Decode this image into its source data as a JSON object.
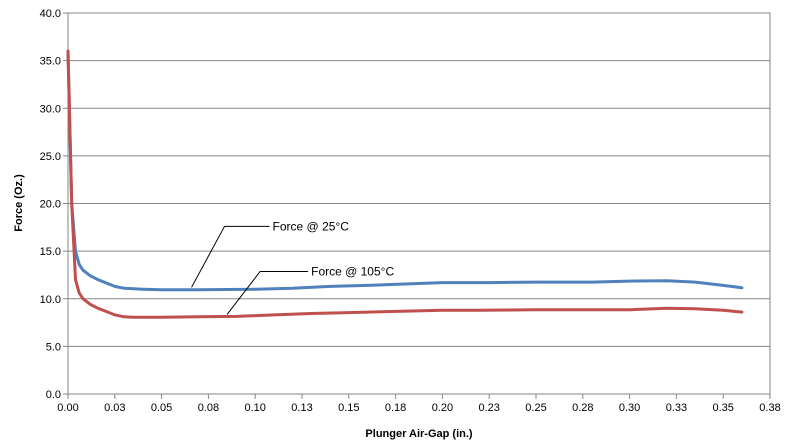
{
  "chart_data": {
    "type": "line",
    "xlabel": "Plunger Air-Gap (in.)",
    "ylabel": "Force (Oz.)",
    "xlim": [
      0,
      0.375
    ],
    "ylim": [
      0,
      40
    ],
    "x_ticks": [
      "0.00",
      "0.03",
      "0.05",
      "0.08",
      "0.10",
      "0.13",
      "0.15",
      "0.18",
      "0.20",
      "0.23",
      "0.25",
      "0.28",
      "0.30",
      "0.33",
      "0.35",
      "0.38"
    ],
    "y_ticks": [
      "0.0",
      "5.0",
      "10.0",
      "15.0",
      "20.0",
      "25.0",
      "30.0",
      "35.0",
      "40.0"
    ],
    "grid": "horizontal",
    "series": [
      {
        "name": "Force @ 25°C",
        "color": "#4F81BD",
        "points": [
          [
            0.0,
            36.0
          ],
          [
            0.002,
            20.0
          ],
          [
            0.004,
            15.0
          ],
          [
            0.006,
            13.6
          ],
          [
            0.008,
            13.0
          ],
          [
            0.012,
            12.4
          ],
          [
            0.016,
            12.0
          ],
          [
            0.02,
            11.7
          ],
          [
            0.025,
            11.3
          ],
          [
            0.03,
            11.1
          ],
          [
            0.04,
            11.0
          ],
          [
            0.05,
            10.95
          ],
          [
            0.07,
            10.95
          ],
          [
            0.1,
            11.0
          ],
          [
            0.12,
            11.1
          ],
          [
            0.14,
            11.3
          ],
          [
            0.16,
            11.4
          ],
          [
            0.18,
            11.55
          ],
          [
            0.2,
            11.7
          ],
          [
            0.225,
            11.7
          ],
          [
            0.25,
            11.75
          ],
          [
            0.28,
            11.75
          ],
          [
            0.3,
            11.85
          ],
          [
            0.32,
            11.9
          ],
          [
            0.335,
            11.75
          ],
          [
            0.35,
            11.4
          ],
          [
            0.36,
            11.15
          ]
        ]
      },
      {
        "name": "Force @ 105°C",
        "color": "#C0504D",
        "points": [
          [
            0.0,
            36.0
          ],
          [
            0.002,
            20.0
          ],
          [
            0.004,
            12.0
          ],
          [
            0.006,
            10.6
          ],
          [
            0.008,
            10.0
          ],
          [
            0.012,
            9.4
          ],
          [
            0.016,
            9.0
          ],
          [
            0.02,
            8.7
          ],
          [
            0.025,
            8.3
          ],
          [
            0.03,
            8.1
          ],
          [
            0.035,
            8.05
          ],
          [
            0.05,
            8.05
          ],
          [
            0.07,
            8.1
          ],
          [
            0.09,
            8.15
          ],
          [
            0.11,
            8.3
          ],
          [
            0.13,
            8.45
          ],
          [
            0.15,
            8.55
          ],
          [
            0.17,
            8.65
          ],
          [
            0.2,
            8.8
          ],
          [
            0.22,
            8.8
          ],
          [
            0.25,
            8.85
          ],
          [
            0.28,
            8.85
          ],
          [
            0.3,
            8.85
          ],
          [
            0.32,
            9.0
          ],
          [
            0.335,
            8.95
          ],
          [
            0.35,
            8.8
          ],
          [
            0.36,
            8.6
          ]
        ]
      }
    ],
    "annotations": [
      {
        "text": "Force @ 25°C",
        "x": 0.066,
        "y": 11.2,
        "series": 0
      },
      {
        "text": "Force @ 105°C",
        "x": 0.085,
        "y": 8.35,
        "series": 1
      }
    ]
  }
}
